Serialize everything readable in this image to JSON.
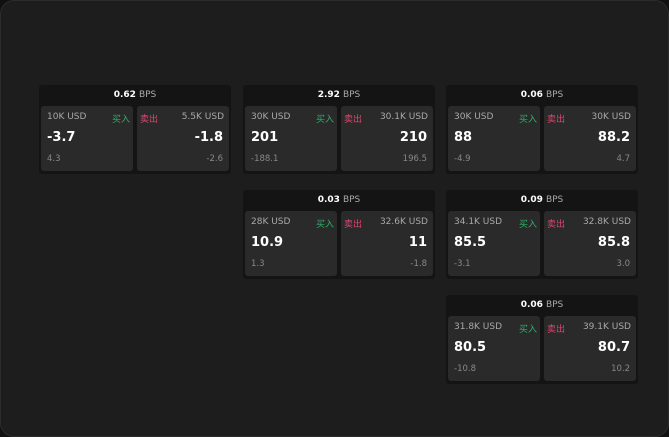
{
  "labels": {
    "buy": "买入",
    "sell": "卖出",
    "unit": "BPS"
  },
  "colors": {
    "buy": "#2fb067",
    "sell": "#e0456f",
    "background": "#1d1d1d",
    "panel": "#2a2a2a"
  },
  "quotes": [
    {
      "spread": "0.62",
      "buy": {
        "qty": "10K USD",
        "price": "-3.7",
        "change": "4.3"
      },
      "sell": {
        "qty": "5.5K USD",
        "price": "-1.8",
        "change": "-2.6"
      }
    },
    {
      "spread": "2.92",
      "buy": {
        "qty": "30K USD",
        "price": "201",
        "change": "-188.1"
      },
      "sell": {
        "qty": "30.1K USD",
        "price": "210",
        "change": "196.5"
      }
    },
    {
      "spread": "0.06",
      "buy": {
        "qty": "30K USD",
        "price": "88",
        "change": "-4.9"
      },
      "sell": {
        "qty": "30K USD",
        "price": "88.2",
        "change": "4.7"
      }
    },
    {
      "spread": "0.03",
      "buy": {
        "qty": "28K USD",
        "price": "10.9",
        "change": "1.3"
      },
      "sell": {
        "qty": "32.6K USD",
        "price": "11",
        "change": "-1.8"
      }
    },
    {
      "spread": "0.09",
      "buy": {
        "qty": "34.1K USD",
        "price": "85.5",
        "change": "-3.1"
      },
      "sell": {
        "qty": "32.8K USD",
        "price": "85.8",
        "change": "3.0"
      }
    },
    {
      "spread": "0.06",
      "buy": {
        "qty": "31.8K USD",
        "price": "80.5",
        "change": "-10.8"
      },
      "sell": {
        "qty": "39.1K USD",
        "price": "80.7",
        "change": "10.2"
      }
    }
  ]
}
